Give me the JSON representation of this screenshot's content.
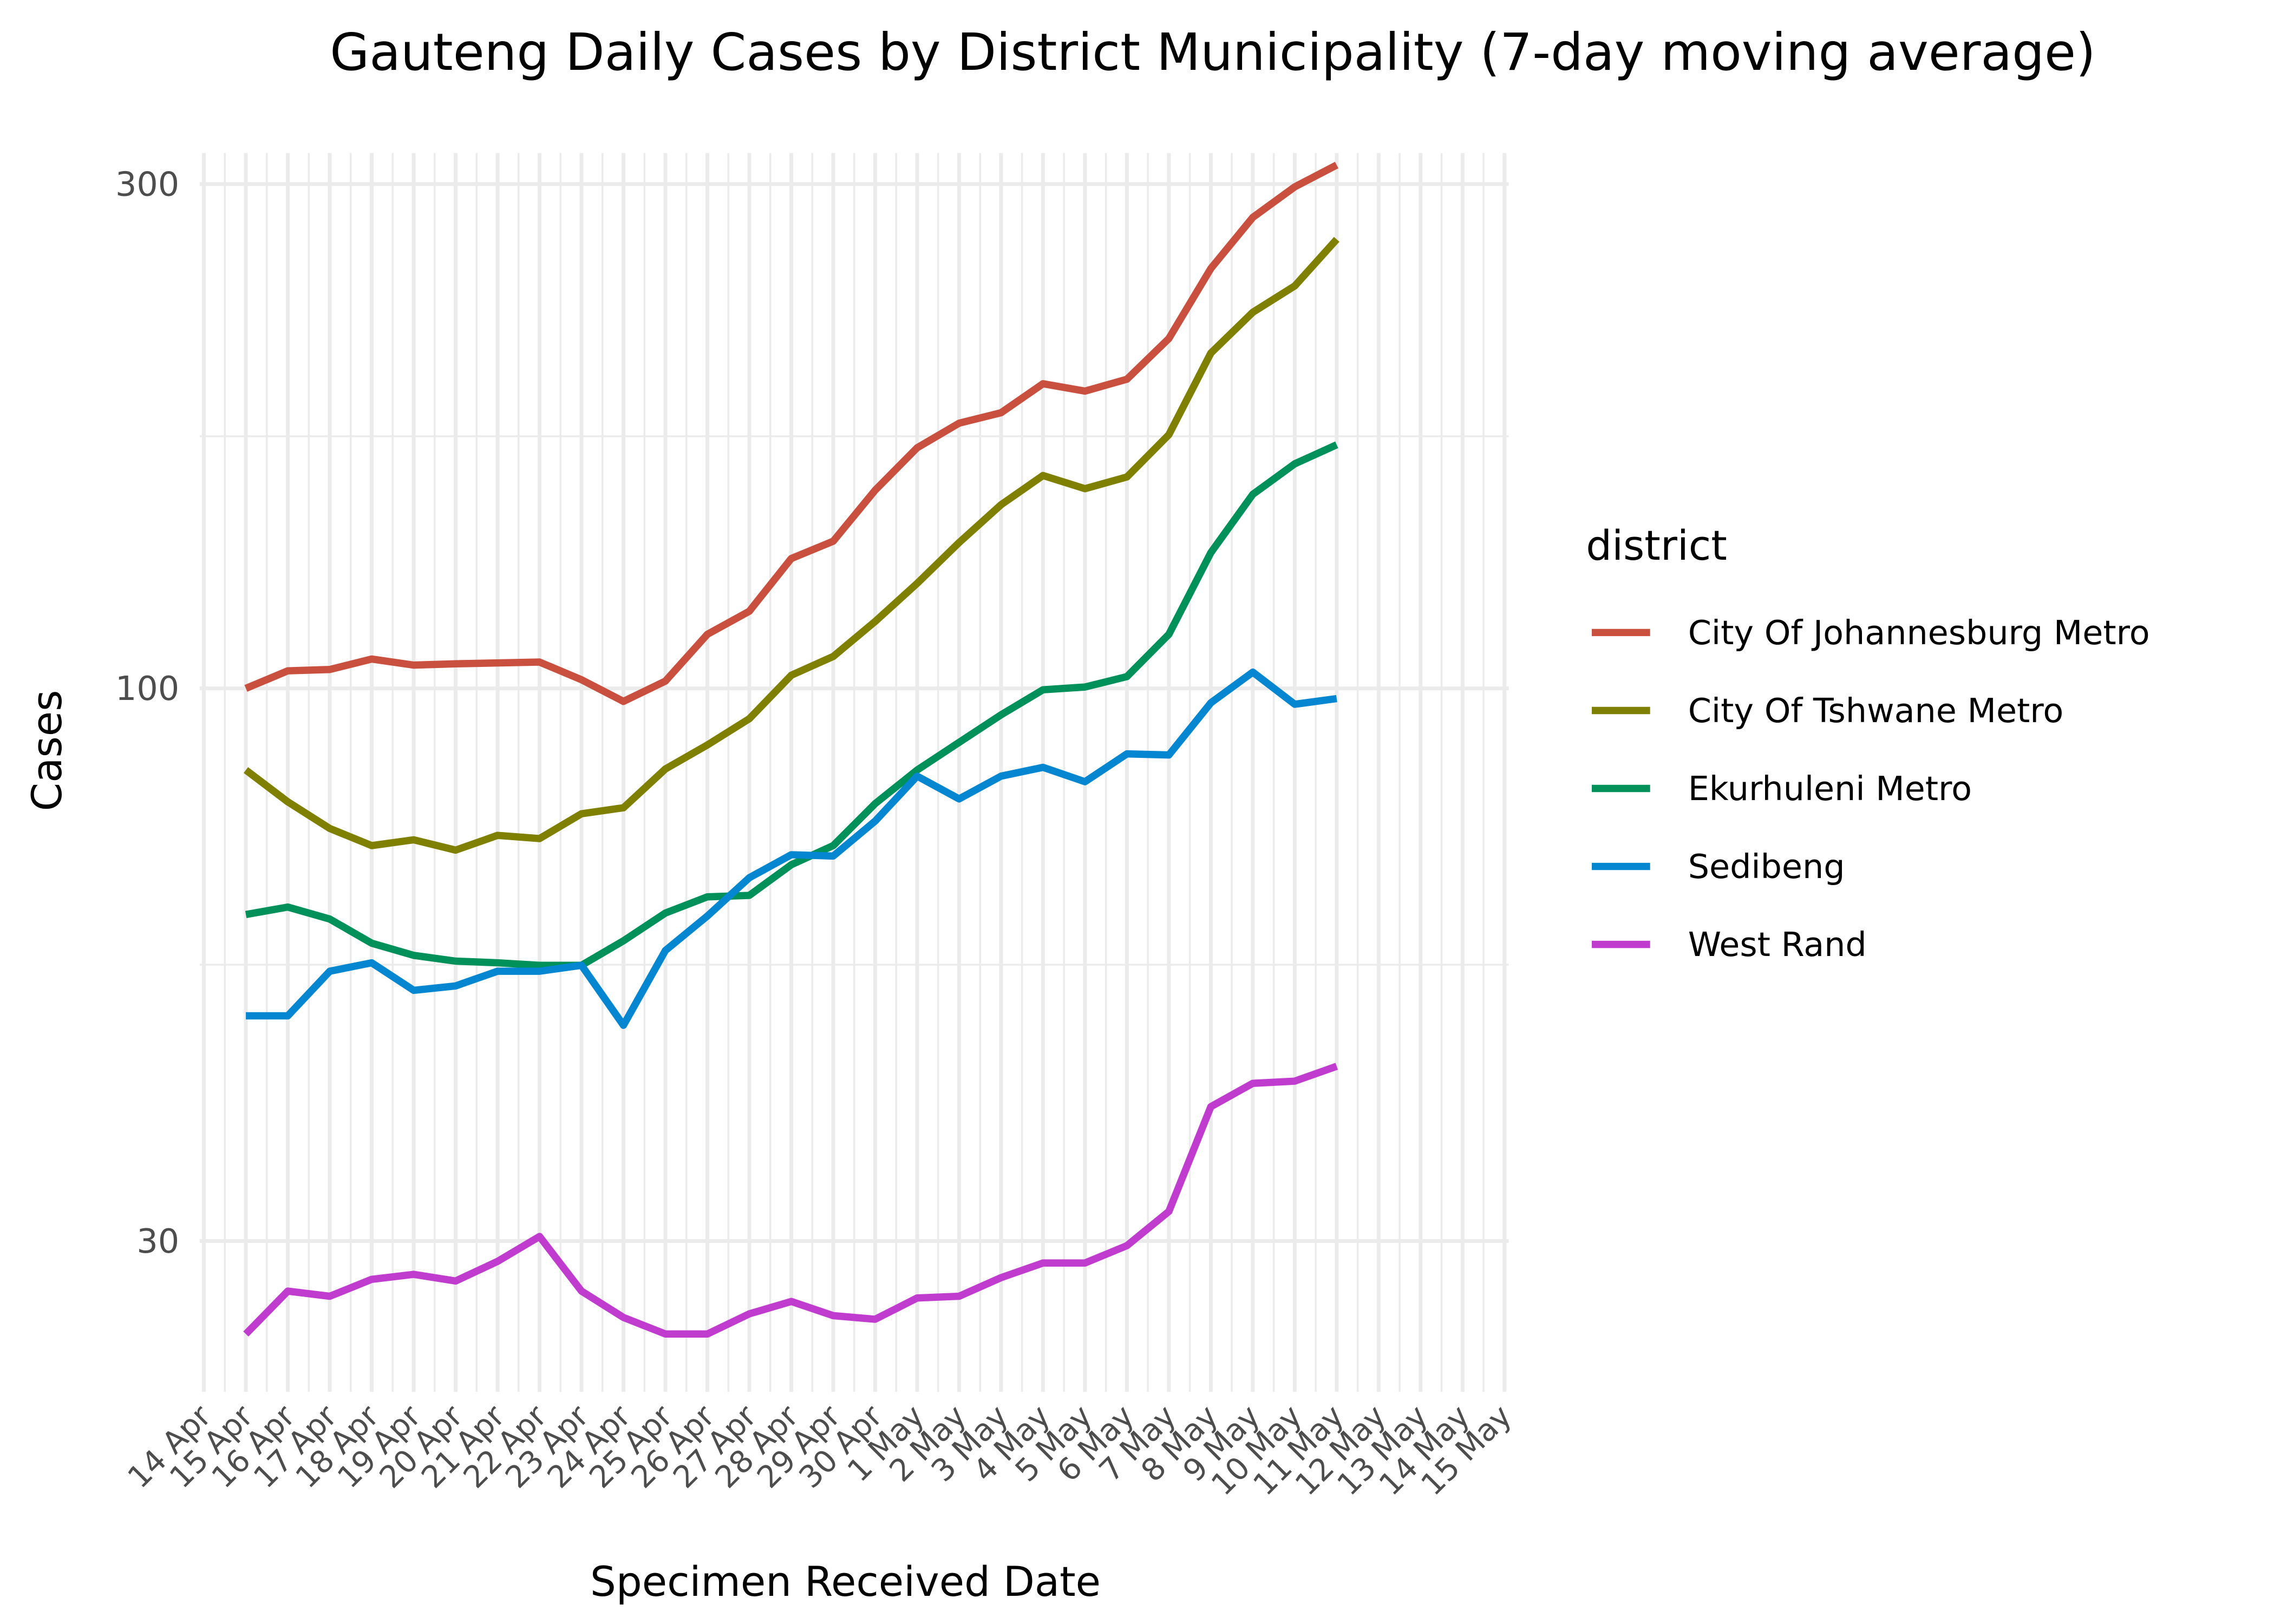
{
  "chart_data": {
    "type": "line",
    "title": "Gauteng Daily Cases by District Municipality (7-day moving average)",
    "xlabel": "Specimen Received Date",
    "ylabel": "Cases",
    "legend_title": "district",
    "legend_position": "right",
    "grid": true,
    "ylog": true,
    "ylim": [
      21.6,
      321
    ],
    "yticks": [
      30,
      100,
      300
    ],
    "categories": [
      "14 Apr",
      "15 Apr",
      "16 Apr",
      "17 Apr",
      "18 Apr",
      "19 Apr",
      "20 Apr",
      "21 Apr",
      "22 Apr",
      "23 Apr",
      "24 Apr",
      "25 Apr",
      "26 Apr",
      "27 Apr",
      "28 Apr",
      "29 Apr",
      "30 Apr",
      "1 May",
      "2 May",
      "3 May",
      "4 May",
      "5 May",
      "6 May",
      "7 May",
      "8 May",
      "9 May",
      "10 May",
      "11 May",
      "12 May",
      "13 May",
      "14 May",
      "15 May"
    ],
    "series": [
      {
        "name": "City Of Johannesburg Metro",
        "color": "#c9503f",
        "values": [
          null,
          100,
          103.9,
          104.2,
          106.6,
          105.2,
          105.5,
          105.7,
          105.9,
          101.9,
          97.2,
          101.6,
          112.5,
          118.3,
          132.7,
          137.8,
          154,
          168.9,
          178.2,
          182.3,
          194.2,
          191.1,
          196.1,
          214.3,
          249.6,
          279,
          298.2,
          312.7,
          null,
          null,
          null,
          null
        ]
      },
      {
        "name": "City Of Tshwane Metro",
        "color": "#7f7f00",
        "values": [
          null,
          83.7,
          78.1,
          73.7,
          71.0,
          71.9,
          70.3,
          72.6,
          72.1,
          76.1,
          77.1,
          83.9,
          88.4,
          93.6,
          102.9,
          107.2,
          115.7,
          125.7,
          137.4,
          149.2,
          159.0,
          154.5,
          158.5,
          173.8,
          207.6,
          226.9,
          240.3,
          266,
          null,
          null,
          null,
          null
        ]
      },
      {
        "name": "Ekurhuleni Metro",
        "color": "#00905a",
        "values": [
          null,
          61.1,
          62.1,
          60.5,
          57.4,
          55.9,
          55.2,
          55.0,
          54.7,
          54.7,
          57.7,
          61.3,
          63.5,
          63.7,
          68.1,
          71.0,
          77.8,
          83.7,
          88.9,
          94.4,
          99.7,
          100.3,
          102.6,
          112.5,
          134.4,
          152.6,
          163.1,
          170.0,
          null,
          null,
          null,
          null
        ]
      },
      {
        "name": "Sedibeng",
        "color": "#0487d0",
        "values": [
          null,
          49.0,
          49.0,
          54.0,
          55.0,
          51.8,
          52.3,
          54.0,
          54.0,
          54.7,
          48.0,
          56.5,
          60.9,
          66.2,
          69.6,
          69.4,
          74.9,
          82.6,
          78.6,
          82.6,
          84.2,
          81.6,
          86.7,
          86.5,
          96.9,
          103.6,
          96.6,
          97.8,
          null,
          null,
          null,
          null
        ]
      },
      {
        "name": "West Rand",
        "color": "#c03ccf",
        "values": [
          null,
          24.5,
          26.9,
          26.6,
          27.6,
          27.9,
          27.5,
          28.7,
          30.3,
          26.9,
          25.4,
          24.5,
          24.5,
          25.6,
          26.3,
          25.5,
          25.3,
          26.5,
          26.6,
          27.7,
          28.6,
          28.6,
          29.7,
          32.0,
          40.2,
          42.3,
          42.5,
          43.9,
          null,
          null,
          null,
          null
        ]
      }
    ]
  }
}
